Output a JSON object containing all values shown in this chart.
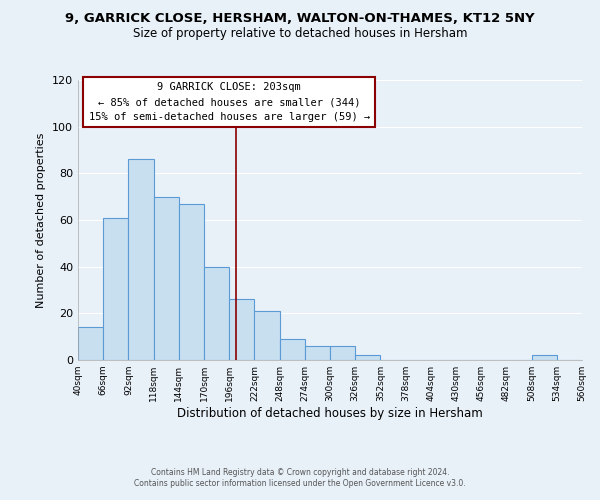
{
  "title": "9, GARRICK CLOSE, HERSHAM, WALTON-ON-THAMES, KT12 5NY",
  "subtitle": "Size of property relative to detached houses in Hersham",
  "xlabel": "Distribution of detached houses by size in Hersham",
  "ylabel": "Number of detached properties",
  "bar_color": "#c8dff0",
  "bar_edge_color": "#5b9bd5",
  "background_color": "#e8f0f8",
  "grid_color": "#ffffff",
  "tick_labels": [
    "40sqm",
    "66sqm",
    "92sqm",
    "118sqm",
    "144sqm",
    "170sqm",
    "196sqm",
    "222sqm",
    "248sqm",
    "274sqm",
    "300sqm",
    "326sqm",
    "352sqm",
    "378sqm",
    "404sqm",
    "430sqm",
    "456sqm",
    "482sqm",
    "508sqm",
    "534sqm",
    "560sqm"
  ],
  "bar_heights": [
    14,
    61,
    86,
    70,
    67,
    40,
    26,
    21,
    9,
    6,
    6,
    2,
    0,
    0,
    0,
    0,
    0,
    0,
    2,
    0
  ],
  "bin_edges_num": [
    40,
    66,
    92,
    118,
    144,
    170,
    196,
    222,
    248,
    274,
    300,
    326,
    352,
    378,
    404,
    430,
    456,
    482,
    508,
    534,
    560
  ],
  "vline_x": 203,
  "annotation_line1": "9 GARRICK CLOSE: 203sqm",
  "annotation_line2": "← 85% of detached houses are smaller (344)",
  "annotation_line3": "15% of semi-detached houses are larger (59) →",
  "ylim": [
    0,
    120
  ],
  "footnote1": "Contains HM Land Registry data © Crown copyright and database right 2024.",
  "footnote2": "Contains public sector information licensed under the Open Government Licence v3.0."
}
